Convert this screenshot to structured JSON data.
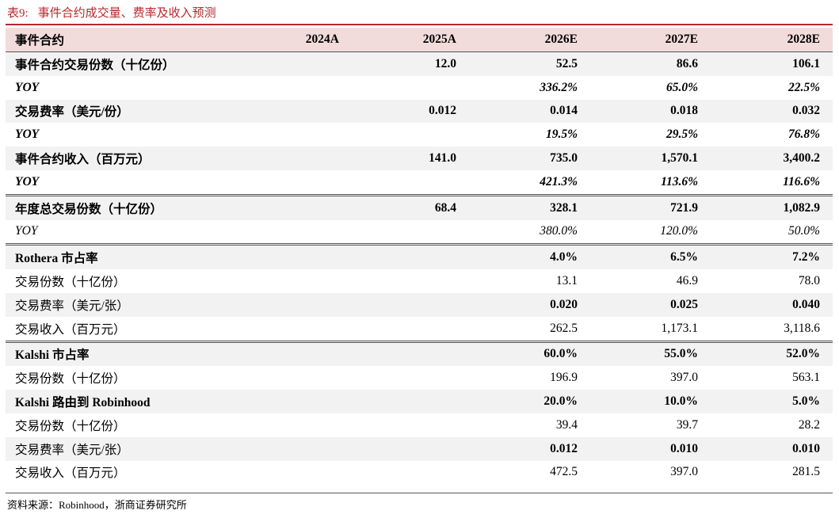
{
  "title": {
    "label": "表9:",
    "text": "事件合约成交量、费率及收入预测"
  },
  "header": {
    "cells": [
      "事件合约",
      "2024A",
      "2025A",
      "2026E",
      "2027E",
      "2028E"
    ]
  },
  "rows": [
    {
      "cells": [
        "事件合约交易份数（十亿份）",
        "",
        "12.0",
        "52.5",
        "86.6",
        "106.1"
      ],
      "style": "bold",
      "shade": true,
      "sep": false
    },
    {
      "cells": [
        "YOY",
        "",
        "",
        "336.2%",
        "65.0%",
        "22.5%"
      ],
      "style": "bold-italic",
      "shade": false,
      "sep": false
    },
    {
      "cells": [
        "交易费率（美元/份）",
        "",
        "0.012",
        "0.014",
        "0.018",
        "0.032"
      ],
      "style": "bold",
      "shade": true,
      "sep": false
    },
    {
      "cells": [
        "YOY",
        "",
        "",
        "19.5%",
        "29.5%",
        "76.8%"
      ],
      "style": "bold-italic",
      "shade": false,
      "sep": false
    },
    {
      "cells": [
        "事件合约收入（百万元）",
        "",
        "141.0",
        "735.0",
        "1,570.1",
        "3,400.2"
      ],
      "style": "bold",
      "shade": true,
      "sep": false
    },
    {
      "cells": [
        "YOY",
        "",
        "",
        "421.3%",
        "113.6%",
        "116.6%"
      ],
      "style": "bold-italic",
      "shade": false,
      "sep": false
    },
    {
      "cells": [
        "年度总交易份数（十亿份）",
        "",
        "68.4",
        "328.1",
        "721.9",
        "1,082.9"
      ],
      "style": "bold",
      "shade": true,
      "sep": true
    },
    {
      "cells": [
        "YOY",
        "",
        "",
        "380.0%",
        "120.0%",
        "50.0%"
      ],
      "style": "italic",
      "shade": false,
      "sep": false
    },
    {
      "cells": [
        "Rothera 市占率",
        "",
        "",
        "4.0%",
        "6.5%",
        "7.2%"
      ],
      "style": "bold",
      "shade": true,
      "sep": true
    },
    {
      "cells": [
        "交易份数（十亿份）",
        "",
        "",
        "13.1",
        "46.9",
        "78.0"
      ],
      "style": "normal",
      "shade": false,
      "sep": false
    },
    {
      "cells": [
        "交易费率（美元/张）",
        "",
        "",
        "0.020",
        "0.025",
        "0.040"
      ],
      "style": "bold-values",
      "shade": true,
      "sep": false
    },
    {
      "cells": [
        "交易收入（百万元）",
        "",
        "",
        "262.5",
        "1,173.1",
        "3,118.6"
      ],
      "style": "normal",
      "shade": false,
      "sep": false
    },
    {
      "cells": [
        "Kalshi 市占率",
        "",
        "",
        "60.0%",
        "55.0%",
        "52.0%"
      ],
      "style": "bold",
      "shade": true,
      "sep": true
    },
    {
      "cells": [
        "交易份数（十亿份）",
        "",
        "",
        "196.9",
        "397.0",
        "563.1"
      ],
      "style": "normal",
      "shade": false,
      "sep": false
    },
    {
      "cells": [
        "Kalshi 路由到 Robinhood",
        "",
        "",
        "20.0%",
        "10.0%",
        "5.0%"
      ],
      "style": "bold",
      "shade": true,
      "sep": false
    },
    {
      "cells": [
        "交易份数（十亿份）",
        "",
        "",
        "39.4",
        "39.7",
        "28.2"
      ],
      "style": "normal",
      "shade": false,
      "sep": false
    },
    {
      "cells": [
        "交易费率（美元/张）",
        "",
        "",
        "0.012",
        "0.010",
        "0.010"
      ],
      "style": "bold-values",
      "shade": true,
      "sep": false
    },
    {
      "cells": [
        "交易收入（百万元）",
        "",
        "",
        "472.5",
        "397.0",
        "281.5"
      ],
      "style": "normal",
      "shade": false,
      "sep": false
    }
  ],
  "source": "资料来源：Robinhood，浙商证券研究所"
}
